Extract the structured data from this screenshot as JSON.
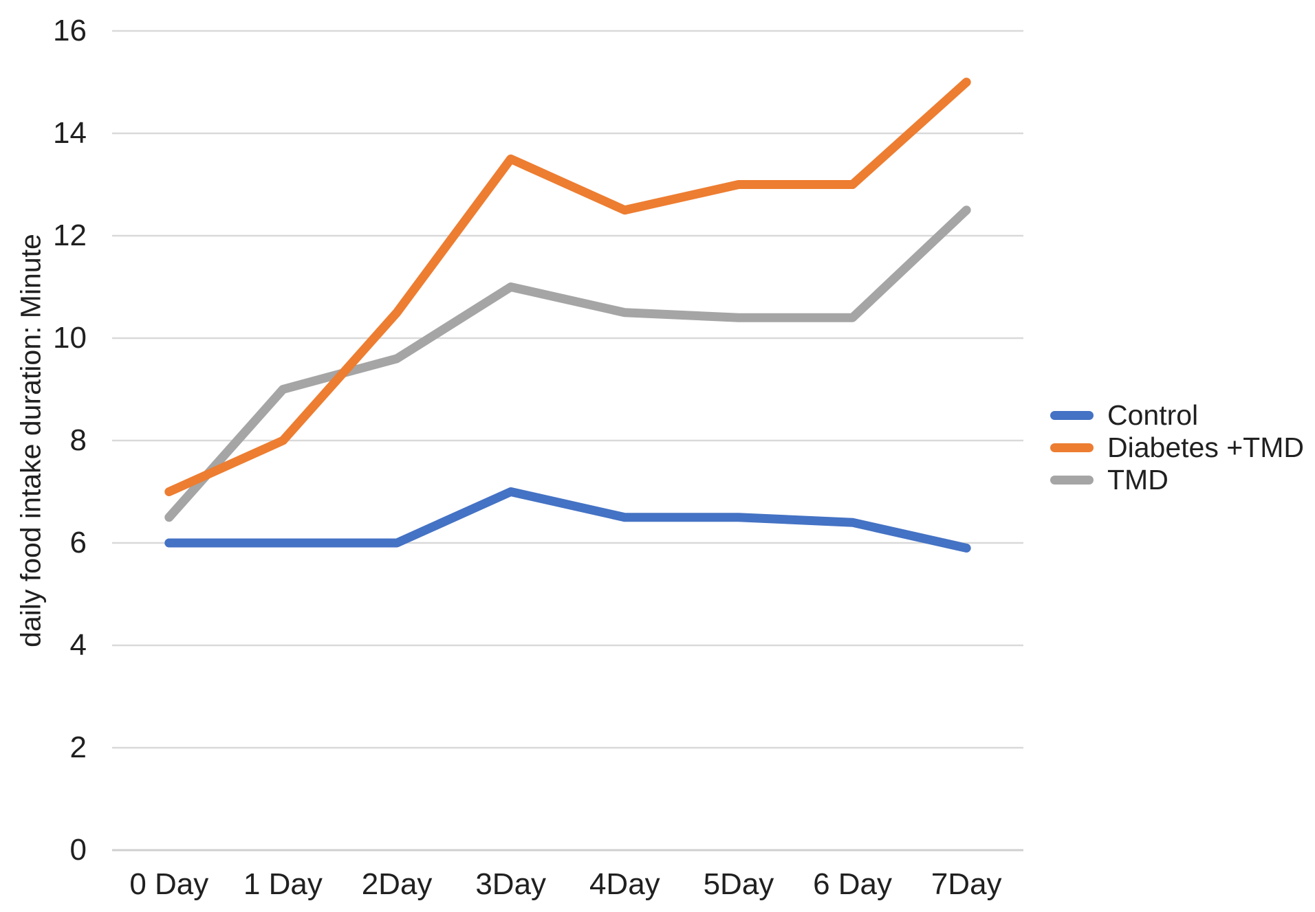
{
  "chart_data": {
    "type": "line",
    "title": "",
    "xlabel": "",
    "ylabel": "daily food intake duration: Minute",
    "categories": [
      "0 Day",
      "1 Day",
      "2Day",
      "3Day",
      "4Day",
      "5Day",
      "6 Day",
      "7Day"
    ],
    "series": [
      {
        "name": "Control",
        "color": "#4472C4",
        "values": [
          6,
          6,
          6,
          7,
          6.5,
          6.5,
          6.4,
          5.9
        ]
      },
      {
        "name": "Diabetes +TMD",
        "color": "#ED7D31",
        "values": [
          7,
          8,
          10.5,
          13.5,
          12.5,
          13,
          13,
          15
        ]
      },
      {
        "name": "TMD",
        "color": "#A5A5A5",
        "values": [
          6.5,
          9,
          9.6,
          11,
          10.5,
          10.4,
          10.4,
          12.5
        ]
      }
    ],
    "ylim": [
      0,
      16
    ],
    "ytick_step": 2,
    "yticks": [
      "0",
      "2",
      "4",
      "6",
      "8",
      "10",
      "12",
      "14",
      "16"
    ],
    "grid": true,
    "legend_position": "right"
  },
  "styles": {
    "background": "#FFFFFF",
    "gridline_color": "#D9D9D9",
    "axis_line_color": "#CFCFCF",
    "text_color": "#202020",
    "line_width": 13
  }
}
